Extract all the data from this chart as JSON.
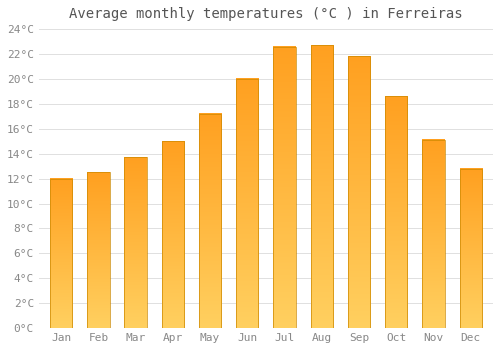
{
  "title": "Average monthly temperatures (°C ) in Ferreiras",
  "months": [
    "Jan",
    "Feb",
    "Mar",
    "Apr",
    "May",
    "Jun",
    "Jul",
    "Aug",
    "Sep",
    "Oct",
    "Nov",
    "Dec"
  ],
  "values": [
    12.0,
    12.5,
    13.7,
    15.0,
    17.2,
    20.0,
    22.6,
    22.7,
    21.8,
    18.6,
    15.1,
    12.8
  ],
  "bar_color": "#FFA500",
  "bar_color_light": "#FFD050",
  "bar_edge_color": "#CC8800",
  "background_color": "#FFFFFF",
  "grid_color": "#E0E0E0",
  "ylim": [
    0,
    24
  ],
  "yticks": [
    0,
    2,
    4,
    6,
    8,
    10,
    12,
    14,
    16,
    18,
    20,
    22,
    24
  ],
  "title_fontsize": 10,
  "tick_fontsize": 8,
  "title_color": "#555555",
  "tick_color": "#888888"
}
